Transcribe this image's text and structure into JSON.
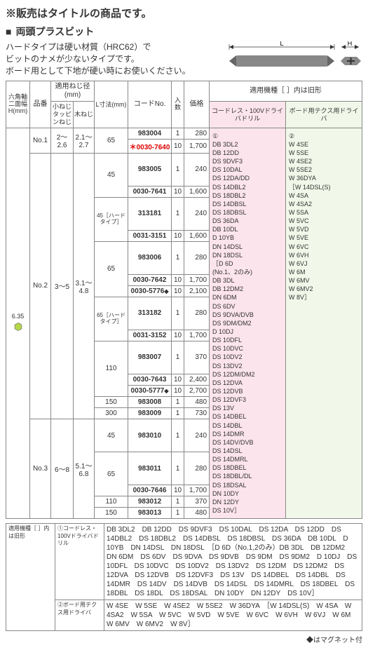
{
  "notice": "※販売はタイトルの商品です。",
  "sectionTitle": "両頭プラスビット",
  "desc1": "ハードタイプは硬い材質（HRC62）で",
  "desc2": "ビットのナメが少ないタイプです。",
  "desc3": "ボード用として下地が硬い時にお使いください。",
  "diagram": {
    "labelL": "L",
    "labelH": "H"
  },
  "headers": {
    "hex": "六角軸二面幅H(mm)",
    "hinban": "品番",
    "tekiyo": "適用ねじ径(mm)",
    "koneji": "小ねじタッピンねじ",
    "kineji": "木ねじ",
    "lsun": "L寸法(mm)",
    "codeNo": "コードNo.",
    "irisuu": "入数",
    "kakaku": "価格",
    "tekiyoKishu": "適用機種［ ］内は旧形",
    "cordless": "コードレス・100Vドライバドリル",
    "board": "ボード用テクス用ドライバ"
  },
  "hexValue": "6.35",
  "hexColor": "#b5d84a",
  "groups": [
    {
      "hinban": "No.1",
      "koneji": "2～2.6",
      "kineji": "2.1～2.7",
      "rows": [
        {
          "l": "65",
          "lRowspan": 2,
          "code": "983004",
          "qty": "1",
          "price": "280"
        },
        {
          "code": "0030-7640",
          "qty": "10",
          "price": "1,700",
          "red": true,
          "star": true
        }
      ]
    },
    {
      "hinban": "No.2",
      "koneji": "3～5",
      "kineji": "3.1～4.8",
      "rows": [
        {
          "l": "45",
          "lRowspan": 2,
          "code": "983005",
          "qty": "1",
          "price": "240"
        },
        {
          "code": "0030-7641",
          "qty": "10",
          "price": "1,600"
        },
        {
          "l": "45［ハードタイプ］",
          "lRowspan": 2,
          "code": "313181",
          "qty": "1",
          "price": "240"
        },
        {
          "code": "0031-3151",
          "qty": "10",
          "price": "1,600"
        },
        {
          "l": "65",
          "lRowspan": 3,
          "code": "983006",
          "qty": "1",
          "price": "280"
        },
        {
          "code": "0030-7642",
          "qty": "10",
          "price": "1,700"
        },
        {
          "code": "0030-5776",
          "qty": "10",
          "price": "2,100",
          "diamond": true
        },
        {
          "l": "65［ハードタイプ］",
          "lRowspan": 2,
          "code": "313182",
          "qty": "1",
          "price": "280"
        },
        {
          "code": "0031-3152",
          "qty": "10",
          "price": "1,700"
        },
        {
          "l": "110",
          "lRowspan": 3,
          "code": "983007",
          "qty": "1",
          "price": "370"
        },
        {
          "code": "0030-7643",
          "qty": "10",
          "price": "2,400"
        },
        {
          "code": "0030-5777",
          "qty": "10",
          "price": "2,700",
          "diamond": true
        },
        {
          "l": "150",
          "lRowspan": 1,
          "code": "983008",
          "qty": "1",
          "price": "480"
        },
        {
          "l": "300",
          "lRowspan": 1,
          "code": "983009",
          "qty": "1",
          "price": "730"
        }
      ]
    },
    {
      "hinban": "No.3",
      "koneji": "6～8",
      "kineji": "5.1～6.8",
      "rows": [
        {
          "l": "45",
          "lRowspan": 1,
          "code": "983010",
          "qty": "1",
          "price": "240"
        },
        {
          "l": "65",
          "lRowspan": 2,
          "code": "983011",
          "qty": "1",
          "price": "280"
        },
        {
          "code": "0030-7646",
          "qty": "10",
          "price": "1,700"
        },
        {
          "l": "110",
          "lRowspan": 1,
          "code": "983012",
          "qty": "1",
          "price": "370"
        },
        {
          "l": "150",
          "lRowspan": 1,
          "code": "983013",
          "qty": "1",
          "price": "480"
        }
      ]
    }
  ],
  "modelsA": [
    "①",
    "DB 3DL2",
    "DB 12DD",
    "DS 9DVF3",
    "DS 10DAL",
    "DS 12DA/DD",
    "DS 14DBL2",
    "DS 18DBL2",
    "DS 14DBSL",
    "DS 18DBSL",
    "DS 36DA",
    "DB 10DL",
    "D 10YB",
    "DN 14DSL",
    "DN 18DSL",
    "［D 6D",
    " (No.1、2のみ)",
    "DB 3DL",
    "DB 12DM2",
    "DN 6DM",
    "DS 6DV",
    "DS 9DVA/DVB",
    "DS 9DM/DM2",
    "D 10DJ",
    "DS 10DFL",
    "DS 10DVC",
    "DS 10DV2",
    "DS 13DV2",
    "DS 12DM/DM2",
    "DS 12DVA",
    "DS 12DVB",
    "DS 12DVF3",
    "DS 13V",
    "DS 14DBEL",
    "DS 14DBL",
    "DS 14DMR",
    "DS 14DV/DVB",
    "DS 14DSL",
    "DS 14DMRL",
    "DS 18DBEL",
    "DS 18DBL/DL",
    "DS 18DSAL",
    "DN 10DY",
    "DN 12DY",
    "DS 10V］"
  ],
  "modelsB": [
    "②",
    "W 4SE",
    "W 5SE",
    "W 4SE2",
    "W 5SE2",
    "W 36DYA",
    "［W 14DSL(S)",
    "W 4SA",
    "W 4SA2",
    "W 5SA",
    "W 5VC",
    "W 5VD",
    "W 5VE",
    "W 6VC",
    "W 6VH",
    "W 6VJ",
    "W 6M",
    "W 6MV",
    "W 6MV2",
    "W 8V］"
  ],
  "footer": {
    "tekiyoLabel": "適用機種［ ］内は旧形",
    "row1Label": "①コードレス・100Vドライバドリル",
    "row1Text": "DB 3DL2　DB 12DD　DS 9DVF3　DS 10DAL　DS 12DA　DS 12DD　DS 14DBL2　DS 18DBL2　DS 14DBSL　DS 18DBSL　DS 36DA　DB 10DL　D 10YB　DN 14DSL　DN 18DSL　［D 6D（No.1,2のみ）DB 3DL　DB 12DM2　DN 6DM　DS 6DV　DS 9DVA　DS 9DVB　DS 9DM　DS 9DM2　D 10DJ　DS 10DFL　DS 10DVC　DS 10DV2　DS 13DV2　DS 12DM　DS 12DM2　DS 12DVA　DS 12DVB　DS 12DVF3　DS 13V　DS 14DBEL　DS 14DBL　DS 14DMR　DS 14DV　DS 14DVB　DS 14DSL　DS 14DMRL　DS 18DBEL　DS 18DBL　DS 18DL　DS 18DSAL　DN 10DY　DN 12DY　DS 10V］",
    "row2Label": "②ボード用テクス用ドライバ",
    "row2Text": "W 4SE　W 5SE　W 4SE2　W 5SE2　W 36DYA　［W 14DSL(S)　W 4SA　W 4SA2　W 5SA　W 5VC　W 5VD　W 5VE　W 6VC　W 6VH　W 6VJ　W 6M　W 6MV　W 6MV2　W 8V］",
    "magnetNote": "◆はマグネット付"
  }
}
